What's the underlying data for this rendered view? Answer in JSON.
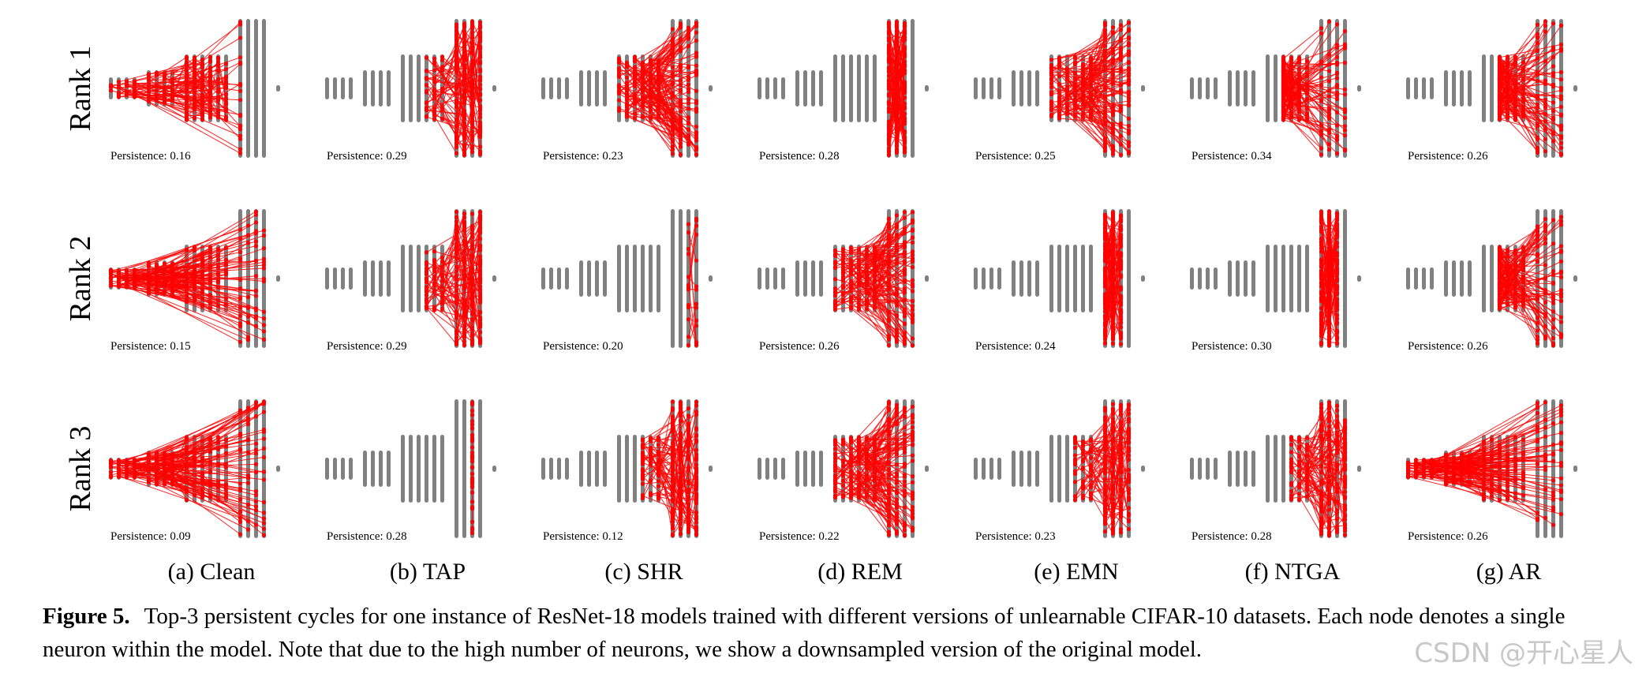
{
  "figure": {
    "rows": [
      "Rank 1",
      "Rank 2",
      "Rank 3"
    ],
    "columns": [
      {
        "caption": "(a) Clean",
        "persistence": [
          "Persistence: 0.16",
          "Persistence: 0.15",
          "Persistence: 0.09"
        ],
        "pattern": [
          "fan-left",
          "fan-wide",
          "fan-wide"
        ]
      },
      {
        "caption": "(b) TAP",
        "persistence": [
          "Persistence: 0.29",
          "Persistence: 0.29",
          "Persistence: 0.28"
        ],
        "pattern": [
          "right-dense",
          "right-dense",
          "single-column"
        ]
      },
      {
        "caption": "(c) SHR",
        "persistence": [
          "Persistence: 0.23",
          "Persistence: 0.20",
          "Persistence: 0.12"
        ],
        "pattern": [
          "mid-dense",
          "sparse-right",
          "right-dense"
        ]
      },
      {
        "caption": "(d) REM",
        "persistence": [
          "Persistence: 0.28",
          "Persistence: 0.26",
          "Persistence: 0.22"
        ],
        "pattern": [
          "narrow-right",
          "mid-dense",
          "mid-dense"
        ]
      },
      {
        "caption": "(e) EMN",
        "persistence": [
          "Persistence: 0.25",
          "Persistence: 0.24",
          "Persistence: 0.23"
        ],
        "pattern": [
          "mid-dense",
          "narrow-right",
          "right-dense"
        ]
      },
      {
        "caption": "(f) NTGA",
        "persistence": [
          "Persistence: 0.34",
          "Persistence: 0.30",
          "Persistence: 0.28"
        ],
        "pattern": [
          "hub-fan",
          "narrow-right",
          "right-dense"
        ]
      },
      {
        "caption": "(g) AR",
        "persistence": [
          "Persistence: 0.26",
          "Persistence: 0.26",
          "Persistence: 0.26"
        ],
        "pattern": [
          "hub-fan",
          "hub-fan",
          "fan-wide"
        ]
      }
    ],
    "caption_label": "Figure 5.",
    "caption_text": "Top-3 persistent cycles for one instance of ResNet-18 models trained with different versions of unlearnable CIFAR-10 datasets. Each node denotes a single neuron within the model. Note that due to the high number of neurons, we show a downsampled version of the original model.",
    "colors": {
      "edge": "#ff0000",
      "layer": "#808080"
    }
  },
  "watermark": "CSDN @开心星人"
}
